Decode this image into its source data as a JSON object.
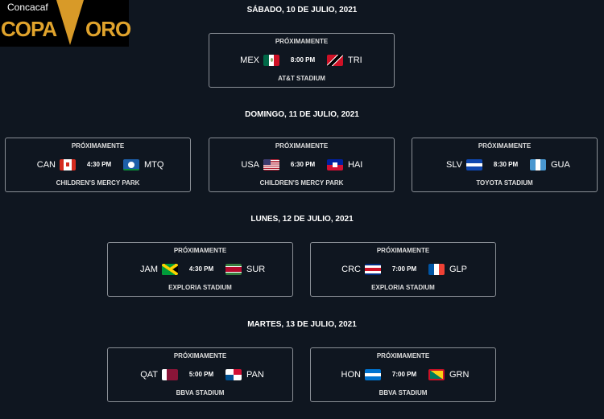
{
  "logo": {
    "brand": "Concacaf",
    "left": "COPA",
    "right": "ORO"
  },
  "days": [
    {
      "label": "SÁBADO, 10 DE JULIO, 2021",
      "matches": [
        {
          "status": "PRÓXIMAMENTE",
          "home": "MEX",
          "away": "TRI",
          "time": "8:00 PM",
          "venue": "AT&T STADIUM",
          "home_flag": "mexico-flag",
          "away_flag": "trinidad-flag"
        }
      ]
    },
    {
      "label": "DOMINGO, 11 DE JULIO, 2021",
      "matches": [
        {
          "status": "PRÓXIMAMENTE",
          "home": "CAN",
          "away": "MTQ",
          "time": "4:30 PM",
          "venue": "CHILDREN'S MERCY PARK",
          "home_flag": "canada-flag",
          "away_flag": "martinique-flag"
        },
        {
          "status": "PRÓXIMAMENTE",
          "home": "USA",
          "away": "HAI",
          "time": "6:30 PM",
          "venue": "CHILDREN'S MERCY PARK",
          "home_flag": "usa-flag",
          "away_flag": "haiti-flag"
        },
        {
          "status": "PRÓXIMAMENTE",
          "home": "SLV",
          "away": "GUA",
          "time": "8:30 PM",
          "venue": "TOYOTA STADIUM",
          "home_flag": "el-salvador-flag",
          "away_flag": "guatemala-flag"
        }
      ]
    },
    {
      "label": "LUNES, 12 DE JULIO, 2021",
      "matches": [
        {
          "status": "PRÓXIMAMENTE",
          "home": "JAM",
          "away": "SUR",
          "time": "4:30 PM",
          "venue": "EXPLORIA STADIUM",
          "home_flag": "jamaica-flag",
          "away_flag": "suriname-flag"
        },
        {
          "status": "PRÓXIMAMENTE",
          "home": "CRC",
          "away": "GLP",
          "time": "7:00 PM",
          "venue": "EXPLORIA STADIUM",
          "home_flag": "costa-rica-flag",
          "away_flag": "guadeloupe-flag"
        }
      ]
    },
    {
      "label": "MARTES, 13 DE JULIO, 2021",
      "matches": [
        {
          "status": "PRÓXIMAMENTE",
          "home": "QAT",
          "away": "PAN",
          "time": "5:00 PM",
          "venue": "BBVA STADIUM",
          "home_flag": "qatar-flag",
          "away_flag": "panama-flag"
        },
        {
          "status": "PRÓXIMAMENTE",
          "home": "HON",
          "away": "GRN",
          "time": "7:00 PM",
          "venue": "BBVA STADIUM",
          "home_flag": "honduras-flag",
          "away_flag": "grenada-flag"
        }
      ]
    }
  ]
}
